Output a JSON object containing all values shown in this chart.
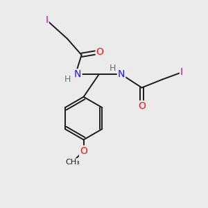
{
  "background_color": "#ebebeb",
  "bond_color": "#1a1a1a",
  "N_color": "#1414ff",
  "O_color": "#ff0d0d",
  "I_color": "#cc00cc",
  "H_color": "#408080",
  "font_size": 10,
  "small_font_size": 9,
  "figsize": [
    3.0,
    3.0
  ],
  "dpi": 100,
  "xlim": [
    0,
    10
  ],
  "ylim": [
    0,
    10
  ]
}
